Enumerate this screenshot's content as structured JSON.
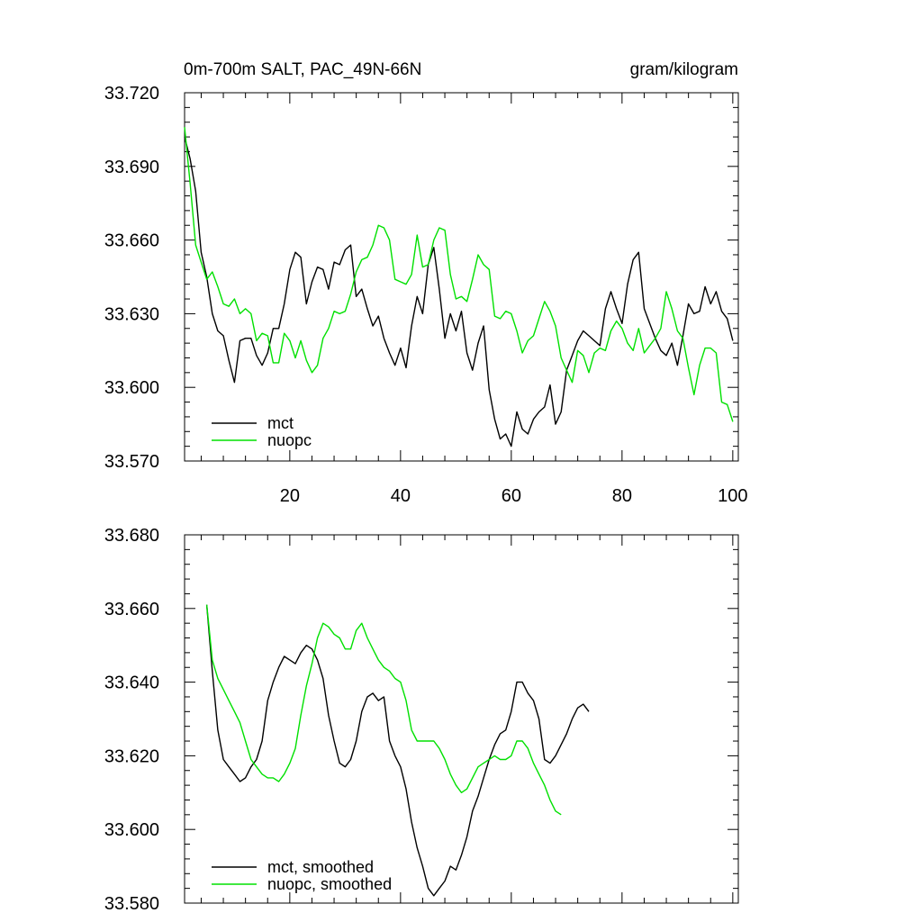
{
  "colors": {
    "mct": "#000000",
    "nuopc": "#00e000"
  },
  "chart_data": [
    {
      "type": "line",
      "title": "0m-700m SALT, PAC_49N-66N",
      "units": "gram/kilogram",
      "xlim": [
        1,
        101
      ],
      "ylim": [
        33.57,
        33.72
      ],
      "x_ticks": [
        20,
        40,
        60,
        80,
        100
      ],
      "x_tick_labels": [
        "20",
        "40",
        "60",
        "80",
        "100"
      ],
      "y_ticks": [
        33.57,
        33.6,
        33.63,
        33.66,
        33.69,
        33.72
      ],
      "y_tick_labels": [
        "33.570",
        "33.600",
        "33.630",
        "33.660",
        "33.690",
        "33.720"
      ],
      "legend": "bottom-left",
      "x_start": 1,
      "series": [
        {
          "name": "mct",
          "color": "#000000",
          "values": [
            33.702,
            33.693,
            33.68,
            33.655,
            33.645,
            33.63,
            33.623,
            33.621,
            33.611,
            33.602,
            33.619,
            33.62,
            33.62,
            33.613,
            33.609,
            33.614,
            33.624,
            33.624,
            33.634,
            33.648,
            33.655,
            33.653,
            33.634,
            33.643,
            33.649,
            33.648,
            33.64,
            33.651,
            33.65,
            33.656,
            33.658,
            33.637,
            33.64,
            33.632,
            33.625,
            33.629,
            33.62,
            33.614,
            33.609,
            33.616,
            33.608,
            33.625,
            33.637,
            33.63,
            33.65,
            33.657,
            33.64,
            33.62,
            33.63,
            33.623,
            33.631,
            33.614,
            33.607,
            33.618,
            33.625,
            33.599,
            33.587,
            33.579,
            33.581,
            33.576,
            33.59,
            33.583,
            33.581,
            33.587,
            33.59,
            33.592,
            33.601,
            33.585,
            33.59,
            33.607,
            33.613,
            33.619,
            33.623,
            33.621,
            33.619,
            33.617,
            33.632,
            33.639,
            33.632,
            33.626,
            33.642,
            33.652,
            33.655,
            33.632,
            33.626,
            33.62,
            33.615,
            33.613,
            33.618,
            33.609,
            33.621,
            33.634,
            33.63,
            33.631,
            33.641,
            33.634,
            33.639,
            33.631,
            33.628,
            33.619
          ]
        },
        {
          "name": "nuopc",
          "color": "#00e000",
          "values": [
            33.706,
            33.683,
            33.658,
            33.651,
            33.644,
            33.647,
            33.641,
            33.634,
            33.633,
            33.636,
            33.63,
            33.632,
            33.63,
            33.619,
            33.622,
            33.621,
            33.61,
            33.61,
            33.622,
            33.619,
            33.612,
            33.619,
            33.611,
            33.606,
            33.609,
            33.62,
            33.624,
            33.631,
            33.63,
            33.631,
            33.638,
            33.647,
            33.652,
            33.653,
            33.658,
            33.666,
            33.665,
            33.66,
            33.644,
            33.643,
            33.642,
            33.646,
            33.662,
            33.649,
            33.65,
            33.66,
            33.665,
            33.664,
            33.646,
            33.636,
            33.637,
            33.635,
            33.644,
            33.654,
            33.65,
            33.648,
            33.629,
            33.628,
            33.631,
            33.63,
            33.623,
            33.614,
            33.619,
            33.621,
            33.628,
            33.635,
            33.631,
            33.625,
            33.612,
            33.607,
            33.602,
            33.615,
            33.613,
            33.606,
            33.614,
            33.616,
            33.615,
            33.623,
            33.627,
            33.624,
            33.618,
            33.615,
            33.624,
            33.614,
            33.617,
            33.62,
            33.624,
            33.639,
            33.632,
            33.623,
            33.62,
            33.608,
            33.597,
            33.609,
            33.616,
            33.616,
            33.614,
            33.594,
            33.593,
            33.586
          ]
        }
      ]
    },
    {
      "type": "line",
      "title": "",
      "xlim": [
        1,
        101
      ],
      "ylim": [
        33.58,
        33.68
      ],
      "x_ticks": [
        20,
        40,
        60,
        80,
        100
      ],
      "y_ticks": [
        33.58,
        33.6,
        33.62,
        33.64,
        33.66,
        33.68
      ],
      "y_tick_labels": [
        "33.580",
        "33.600",
        "33.620",
        "33.640",
        "33.660",
        "33.680"
      ],
      "legend": "bottom-left",
      "x_start": 5,
      "series": [
        {
          "name": "mct, smoothed",
          "color": "#000000",
          "values": [
            33.661,
            33.643,
            33.627,
            33.619,
            33.617,
            33.615,
            33.613,
            33.614,
            33.617,
            33.619,
            33.624,
            33.635,
            33.64,
            33.644,
            33.647,
            33.646,
            33.645,
            33.648,
            33.65,
            33.649,
            33.646,
            33.641,
            33.631,
            33.624,
            33.618,
            33.617,
            33.619,
            33.624,
            33.632,
            33.636,
            33.637,
            33.635,
            33.636,
            33.624,
            33.62,
            33.617,
            33.611,
            33.602,
            33.595,
            33.59,
            33.584,
            33.582,
            33.584,
            33.586,
            33.59,
            33.589,
            33.593,
            33.598,
            33.605,
            33.609,
            33.614,
            33.619,
            33.623,
            33.626,
            33.627,
            33.632,
            33.64,
            33.64,
            33.637,
            33.635,
            33.63,
            33.619,
            33.618,
            33.62,
            33.623,
            33.626,
            33.63,
            33.633,
            33.634,
            33.632
          ]
        },
        {
          "name": "nuopc, smoothed",
          "color": "#00e000",
          "values": [
            33.661,
            33.646,
            33.641,
            33.638,
            33.635,
            33.632,
            33.629,
            33.624,
            33.619,
            33.617,
            33.615,
            33.614,
            33.614,
            33.613,
            33.615,
            33.618,
            33.622,
            33.631,
            33.639,
            33.645,
            33.652,
            33.656,
            33.655,
            33.653,
            33.652,
            33.649,
            33.649,
            33.654,
            33.656,
            33.652,
            33.649,
            33.646,
            33.644,
            33.643,
            33.641,
            33.64,
            33.635,
            33.627,
            33.624,
            33.624,
            33.624,
            33.624,
            33.622,
            33.619,
            33.615,
            33.612,
            33.61,
            33.611,
            33.614,
            33.617,
            33.618,
            33.619,
            33.62,
            33.619,
            33.619,
            33.62,
            33.624,
            33.624,
            33.622,
            33.618,
            33.615,
            33.612,
            33.608,
            33.605,
            33.604
          ]
        }
      ]
    }
  ]
}
